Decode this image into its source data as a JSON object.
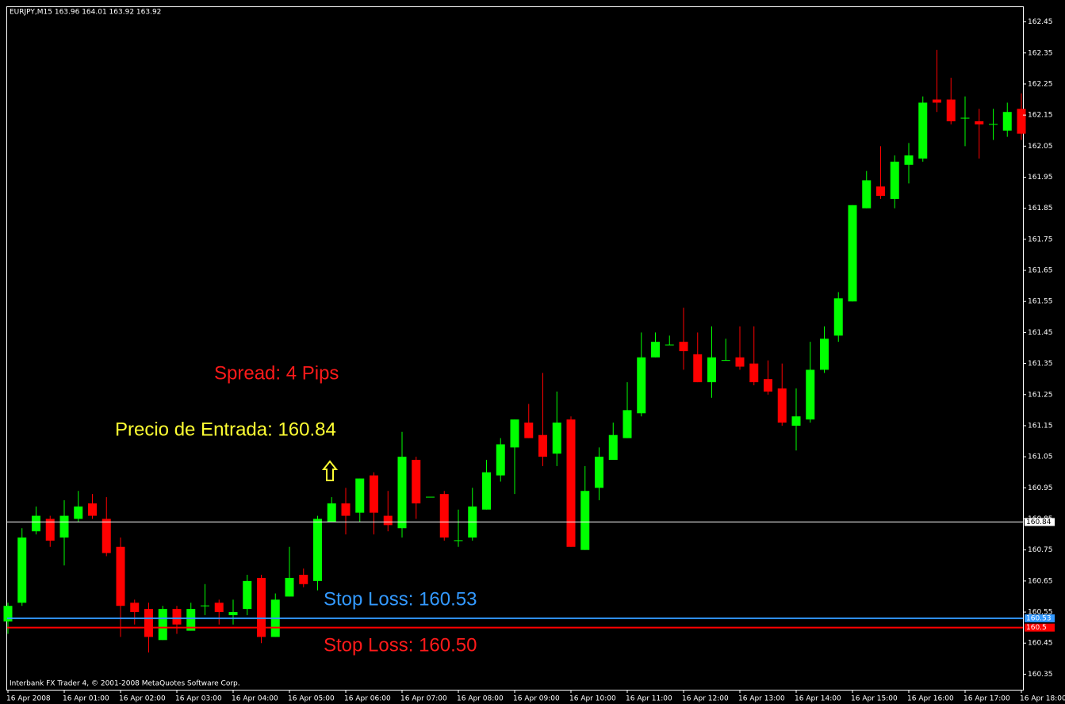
{
  "chart_data": {
    "type": "candlestick",
    "title": "EURJPY,M15  163.96 164.01 163.92 163.92",
    "footer": "Interbank FX Trader 4, © 2001-2008 MetaQuotes Software Corp.",
    "up_color": "#00ff00",
    "down_color": "#ff0000",
    "categories": [
      "16 Apr 2008",
      null,
      null,
      null,
      "16 Apr 01:00",
      null,
      null,
      null,
      "16 Apr 02:00",
      null,
      null,
      null,
      "16 Apr 03:00",
      null,
      null,
      null,
      "16 Apr 04:00",
      null,
      null,
      null,
      "16 Apr 05:00",
      null,
      null,
      null,
      "16 Apr 06:00",
      null,
      null,
      null,
      "16 Apr 07:00",
      null,
      null,
      null,
      "16 Apr 08:00",
      null,
      null,
      null,
      "16 Apr 09:00",
      null,
      null,
      null,
      "16 Apr 10:00",
      null,
      null,
      null,
      "16 Apr 11:00",
      null,
      null,
      null,
      "16 Apr 12:00",
      null,
      null,
      null,
      "16 Apr 13:00",
      null,
      null,
      null,
      "16 Apr 14:00",
      null,
      null,
      null,
      "16 Apr 15:00",
      null,
      null,
      null,
      "16 Apr 16:00",
      null,
      null,
      null,
      "16 Apr 17:00",
      null,
      null,
      null,
      "16 Apr 18:00"
    ],
    "open": [
      160.52,
      160.58,
      160.81,
      160.85,
      160.79,
      160.85,
      160.9,
      160.85,
      160.76,
      160.58,
      160.56,
      160.46,
      160.56,
      160.49,
      160.57,
      160.58,
      160.54,
      160.56,
      160.66,
      160.47,
      160.6,
      160.67,
      160.65,
      160.84,
      160.9,
      160.87,
      160.99,
      160.86,
      160.82,
      161.04,
      160.92,
      160.93,
      160.78,
      160.79,
      160.88,
      160.99,
      161.08,
      161.16,
      161.12,
      161.06,
      161.17,
      160.75,
      160.95,
      161.04,
      161.11,
      161.19,
      161.37,
      161.41,
      161.42,
      161.38,
      161.29,
      161.36,
      161.37,
      161.35,
      161.3,
      161.27,
      161.15,
      161.17,
      161.33,
      161.44,
      161.55,
      161.85,
      161.92,
      161.88,
      161.99,
      162.01,
      162.2,
      162.2,
      162.14,
      162.13,
      162.12,
      162.1,
      162.17
    ],
    "high": [
      160.58,
      160.82,
      160.89,
      160.86,
      160.91,
      160.94,
      160.93,
      160.92,
      160.79,
      160.59,
      160.58,
      160.57,
      160.57,
      160.58,
      160.64,
      160.59,
      160.59,
      160.67,
      160.67,
      160.61,
      160.76,
      160.69,
      160.86,
      160.92,
      160.95,
      160.98,
      161.0,
      160.94,
      161.13,
      161.05,
      160.92,
      160.94,
      160.88,
      160.95,
      161.04,
      161.11,
      161.17,
      161.22,
      161.32,
      161.26,
      161.18,
      161.02,
      161.08,
      161.16,
      161.29,
      161.45,
      161.45,
      161.44,
      161.53,
      161.45,
      161.47,
      161.43,
      161.47,
      161.47,
      161.36,
      161.35,
      161.27,
      161.42,
      161.47,
      161.58,
      161.86,
      161.97,
      162.05,
      162.02,
      162.06,
      162.21,
      162.36,
      162.27,
      162.21,
      162.17,
      162.17,
      162.19,
      162.22
    ],
    "low": [
      160.48,
      160.57,
      160.8,
      160.76,
      160.7,
      160.84,
      160.85,
      160.73,
      160.47,
      160.51,
      160.42,
      160.46,
      160.48,
      160.49,
      160.54,
      160.51,
      160.51,
      160.54,
      160.45,
      160.47,
      160.6,
      160.63,
      160.62,
      160.84,
      160.8,
      160.84,
      160.8,
      160.81,
      160.79,
      160.85,
      160.92,
      160.78,
      160.76,
      160.78,
      160.88,
      160.97,
      160.93,
      161.11,
      161.02,
      161.02,
      160.76,
      160.75,
      160.91,
      161.04,
      161.11,
      161.18,
      161.37,
      161.41,
      161.33,
      161.29,
      161.24,
      161.36,
      161.33,
      161.28,
      161.25,
      161.15,
      161.07,
      161.16,
      161.32,
      161.42,
      161.55,
      161.85,
      161.88,
      161.85,
      161.93,
      162.0,
      162.16,
      162.12,
      162.05,
      162.01,
      162.07,
      162.08,
      162.07
    ],
    "close": [
      160.57,
      160.79,
      160.86,
      160.78,
      160.86,
      160.89,
      160.86,
      160.74,
      160.57,
      160.55,
      160.47,
      160.56,
      160.51,
      160.56,
      160.57,
      160.55,
      160.55,
      160.65,
      160.47,
      160.59,
      160.66,
      160.64,
      160.85,
      160.9,
      160.86,
      160.98,
      160.87,
      160.83,
      161.05,
      160.9,
      160.92,
      160.79,
      160.78,
      160.89,
      161.0,
      161.09,
      161.17,
      161.11,
      161.05,
      161.16,
      160.76,
      160.94,
      161.05,
      161.12,
      161.2,
      161.37,
      161.42,
      161.41,
      161.39,
      161.29,
      161.37,
      161.36,
      161.34,
      161.29,
      161.26,
      161.16,
      161.18,
      161.33,
      161.43,
      161.56,
      161.86,
      161.94,
      161.89,
      162.0,
      162.02,
      162.19,
      162.19,
      162.13,
      162.14,
      162.12,
      162.12,
      162.16,
      162.09
    ],
    "ylim": [
      160.3,
      162.5
    ],
    "yticks": [
      162.45,
      162.35,
      162.25,
      162.15,
      162.05,
      161.95,
      161.85,
      161.75,
      161.65,
      161.55,
      161.45,
      161.35,
      161.25,
      161.15,
      161.05,
      160.95,
      160.85,
      160.75,
      160.65,
      160.55,
      160.45,
      160.35
    ],
    "hlines": [
      {
        "value": 160.84,
        "color": "#ffffff"
      },
      {
        "value": 160.53,
        "color": "#3399ff"
      },
      {
        "value": 160.5,
        "color": "#ff0000"
      }
    ],
    "annotations": [
      {
        "text": "Spread: 4 Pips",
        "color": "#ff1a1a"
      },
      {
        "text": "Precio de Entrada: 160.84",
        "color": "#ffff33"
      },
      {
        "text": "Stop Loss: 160.53",
        "color": "#3399ff"
      },
      {
        "text": "Stop Loss: 160.50",
        "color": "#ff1a1a"
      }
    ]
  }
}
